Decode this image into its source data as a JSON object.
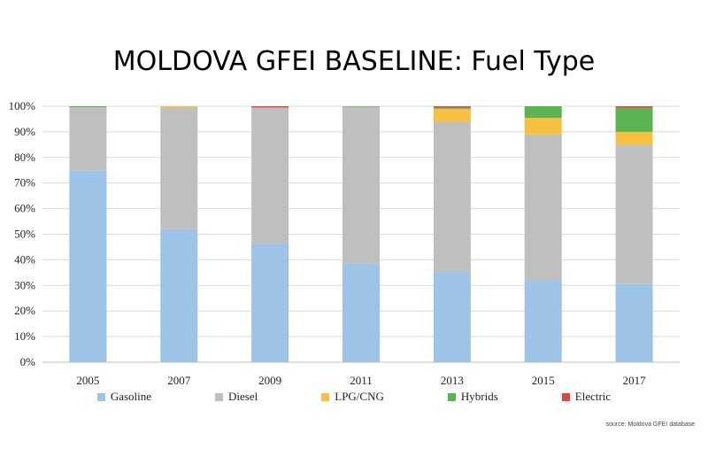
{
  "title": "MOLDOVA GFEI BASELINE: Fuel Type",
  "source_note": "source: Moldova GFEI database",
  "colors": {
    "Gasoline": "#9dc3e6",
    "Diesel": "#bfbfbf",
    "LPG/CNG": "#f6c142",
    "Hybrids": "#5cb352",
    "Electric": "#e0463a",
    "gridline": "#d9d9d9",
    "axis": "#bfbfbf"
  },
  "chart_data": {
    "type": "bar",
    "stacked": true,
    "title": "MOLDOVA GFEI BASELINE: Fuel Type",
    "xlabel": "",
    "ylabel": "",
    "ylim": [
      0,
      100
    ],
    "y_ticks": [
      "0%",
      "10%",
      "20%",
      "30%",
      "40%",
      "50%",
      "60%",
      "70%",
      "80%",
      "90%",
      "100%"
    ],
    "categories": [
      "2005",
      "2007",
      "2009",
      "2011",
      "2013",
      "2015",
      "2017"
    ],
    "grid": true,
    "legend_position": "bottom",
    "series": [
      {
        "name": "Gasoline",
        "values": [
          75,
          52,
          46.5,
          38.5,
          35.5,
          32,
          30.5
        ]
      },
      {
        "name": "Diesel",
        "values": [
          24.6,
          47.5,
          53,
          61.3,
          58.5,
          57,
          54.5
        ]
      },
      {
        "name": "LPG/CNG",
        "values": [
          0,
          0.5,
          0,
          0,
          5,
          6.5,
          5
        ]
      },
      {
        "name": "Hybrids",
        "values": [
          0.4,
          0,
          0,
          0.2,
          0.5,
          4.5,
          9.5
        ]
      },
      {
        "name": "Electric",
        "values": [
          0,
          0,
          0.5,
          0,
          0.5,
          0,
          0.5
        ]
      }
    ]
  }
}
